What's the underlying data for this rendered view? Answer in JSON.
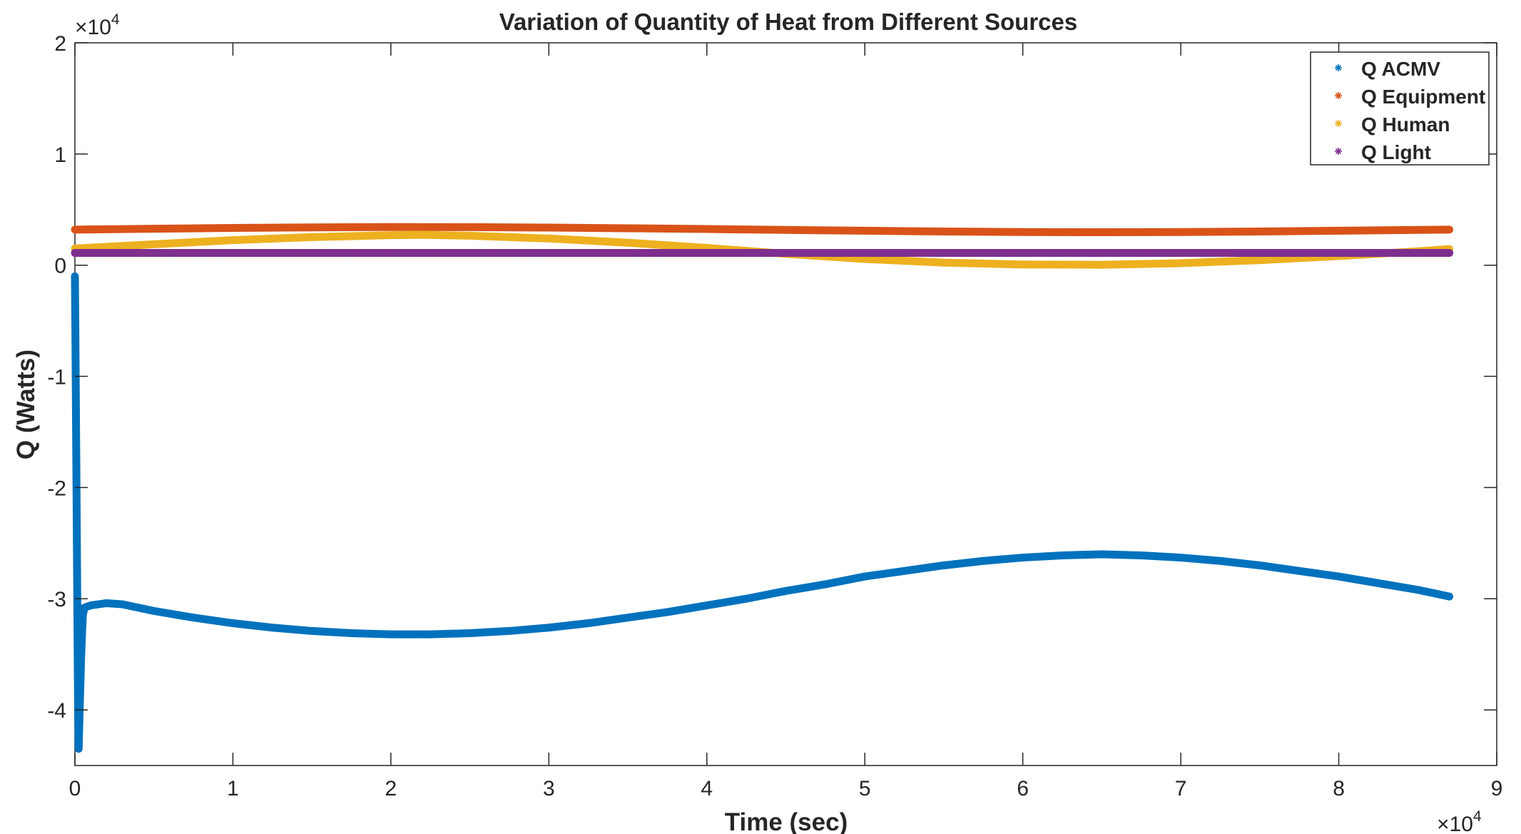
{
  "chart_data": {
    "type": "scatter",
    "title": "Variation of Quantity of Heat from Different Sources",
    "xlabel": "Time (sec)",
    "ylabel": "Q (Watts)",
    "xlim": [
      0,
      90000
    ],
    "ylim": [
      -45000,
      20000
    ],
    "x_exponent_label": "×10",
    "x_exponent_power": "4",
    "y_exponent_label": "×10",
    "y_exponent_power": "4",
    "x_ticks": [
      {
        "value": 0,
        "label": "0"
      },
      {
        "value": 10000,
        "label": "1"
      },
      {
        "value": 20000,
        "label": "2"
      },
      {
        "value": 30000,
        "label": "3"
      },
      {
        "value": 40000,
        "label": "4"
      },
      {
        "value": 50000,
        "label": "5"
      },
      {
        "value": 60000,
        "label": "6"
      },
      {
        "value": 70000,
        "label": "7"
      },
      {
        "value": 80000,
        "label": "8"
      },
      {
        "value": 90000,
        "label": "9"
      }
    ],
    "y_ticks": [
      {
        "value": 20000,
        "label": "2"
      },
      {
        "value": 10000,
        "label": "1"
      },
      {
        "value": 0,
        "label": "0"
      },
      {
        "value": -10000,
        "label": "-1"
      },
      {
        "value": -20000,
        "label": "-2"
      },
      {
        "value": -30000,
        "label": "-3"
      },
      {
        "value": -40000,
        "label": "-4"
      }
    ],
    "grid": false,
    "legend_position": "top-right",
    "marker": "*",
    "series": [
      {
        "name": "Q ACMV",
        "color": "#0072BD",
        "points": [
          [
            0,
            -1000
          ],
          [
            30,
            -6000
          ],
          [
            60,
            -12000
          ],
          [
            90,
            -18000
          ],
          [
            120,
            -24000
          ],
          [
            150,
            -30000
          ],
          [
            180,
            -36000
          ],
          [
            210,
            -41000
          ],
          [
            240,
            -43500
          ],
          [
            300,
            -40000
          ],
          [
            400,
            -35000
          ],
          [
            500,
            -31500
          ],
          [
            600,
            -30800
          ],
          [
            1000,
            -30600
          ],
          [
            2000,
            -30400
          ],
          [
            3000,
            -30500
          ],
          [
            5000,
            -31100
          ],
          [
            7500,
            -31700
          ],
          [
            10000,
            -32200
          ],
          [
            12500,
            -32600
          ],
          [
            15000,
            -32900
          ],
          [
            17500,
            -33100
          ],
          [
            20000,
            -33200
          ],
          [
            22500,
            -33200
          ],
          [
            25000,
            -33100
          ],
          [
            27500,
            -32900
          ],
          [
            30000,
            -32600
          ],
          [
            32500,
            -32200
          ],
          [
            35000,
            -31700
          ],
          [
            37500,
            -31200
          ],
          [
            40000,
            -30600
          ],
          [
            42500,
            -30000
          ],
          [
            45000,
            -29300
          ],
          [
            47500,
            -28700
          ],
          [
            50000,
            -28000
          ],
          [
            52500,
            -27500
          ],
          [
            55000,
            -27000
          ],
          [
            57500,
            -26600
          ],
          [
            60000,
            -26300
          ],
          [
            62500,
            -26100
          ],
          [
            65000,
            -26000
          ],
          [
            67500,
            -26100
          ],
          [
            70000,
            -26300
          ],
          [
            72500,
            -26600
          ],
          [
            75000,
            -27000
          ],
          [
            77500,
            -27500
          ],
          [
            80000,
            -28000
          ],
          [
            82500,
            -28600
          ],
          [
            85000,
            -29200
          ],
          [
            87000,
            -29800
          ]
        ]
      },
      {
        "name": "Q Equipment",
        "color": "#D95319",
        "points": [
          [
            0,
            3200
          ],
          [
            5000,
            3280
          ],
          [
            10000,
            3350
          ],
          [
            15000,
            3400
          ],
          [
            20000,
            3430
          ],
          [
            25000,
            3420
          ],
          [
            30000,
            3380
          ],
          [
            35000,
            3320
          ],
          [
            40000,
            3250
          ],
          [
            45000,
            3170
          ],
          [
            50000,
            3100
          ],
          [
            55000,
            3030
          ],
          [
            60000,
            2980
          ],
          [
            65000,
            2960
          ],
          [
            70000,
            2980
          ],
          [
            75000,
            3030
          ],
          [
            80000,
            3100
          ],
          [
            85000,
            3170
          ],
          [
            87000,
            3200
          ]
        ]
      },
      {
        "name": "Q Human",
        "color": "#EDB120",
        "points": [
          [
            0,
            1500
          ],
          [
            5000,
            1880
          ],
          [
            10000,
            2250
          ],
          [
            15000,
            2520
          ],
          [
            20000,
            2700
          ],
          [
            22000,
            2730
          ],
          [
            25000,
            2650
          ],
          [
            30000,
            2400
          ],
          [
            35000,
            2020
          ],
          [
            40000,
            1550
          ],
          [
            45000,
            1020
          ],
          [
            50000,
            560
          ],
          [
            55000,
            230
          ],
          [
            60000,
            60
          ],
          [
            65000,
            40
          ],
          [
            70000,
            180
          ],
          [
            75000,
            450
          ],
          [
            80000,
            820
          ],
          [
            85000,
            1250
          ],
          [
            87000,
            1450
          ]
        ]
      },
      {
        "name": "Q Light",
        "color": "#7E2F8E",
        "points": [
          [
            0,
            1100
          ],
          [
            10000,
            1100
          ],
          [
            20000,
            1100
          ],
          [
            30000,
            1100
          ],
          [
            40000,
            1100
          ],
          [
            50000,
            1100
          ],
          [
            60000,
            1100
          ],
          [
            70000,
            1100
          ],
          [
            80000,
            1100
          ],
          [
            87000,
            1100
          ]
        ]
      }
    ]
  }
}
